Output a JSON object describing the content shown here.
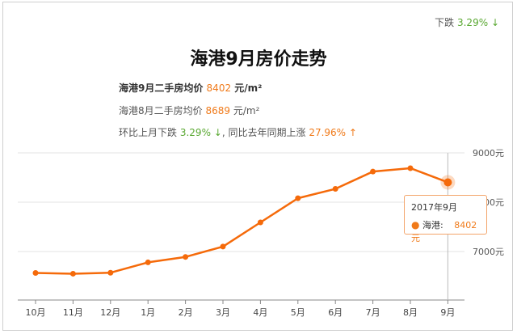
{
  "header": {
    "change_label": "下跌",
    "change_value": "3.29%",
    "change_arrow": "↓"
  },
  "title": "海港9月房价走势",
  "info": {
    "line1_label": "海港9月二手房均价",
    "line1_value": "8402",
    "line1_unit": "元/m²",
    "line2_label": "海港8月二手房均价",
    "line2_value": "8689",
    "line2_unit": "元/m²",
    "line3_prefix": "环比上月下跌",
    "line3_mom": "3.29%",
    "line3_mom_arrow": "↓",
    "line3_mid": ", 同比去年同期上涨",
    "line3_yoy": "27.96%",
    "line3_yoy_arrow": "↑"
  },
  "tooltip": {
    "date": "2017年9月",
    "series": "海港:",
    "value": "8402元"
  },
  "colors": {
    "line": "#f56a0a",
    "up": "#f07a1a",
    "down": "#5aa832",
    "grid": "#e3e3e3"
  },
  "chart_data": {
    "type": "line",
    "categories": [
      "10月",
      "11月",
      "12月",
      "1月",
      "2月",
      "3月",
      "4月",
      "5月",
      "6月",
      "7月",
      "8月",
      "9月"
    ],
    "series": [
      {
        "name": "海港",
        "values": [
          6565,
          6550,
          6570,
          6780,
          6890,
          7100,
          7590,
          8080,
          8270,
          8620,
          8689,
          8402
        ]
      }
    ],
    "y_ticks": [
      "9000元",
      "8000元",
      "7000元"
    ],
    "ylim": [
      6000,
      9000
    ],
    "grid": true,
    "highlight_index": 11
  }
}
